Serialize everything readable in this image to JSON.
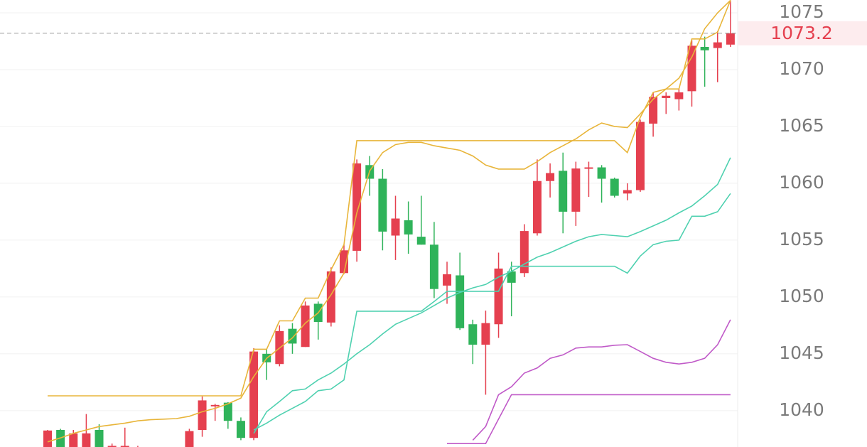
{
  "chart_data": {
    "type": "candlestick",
    "ylim": [
      1036.8,
      1076.125
    ],
    "yticks": [
      1040,
      1045,
      1050,
      1055,
      1060,
      1065,
      1070,
      1075
    ],
    "grid": true,
    "up_color": "#e5404f",
    "down_color": "#2fb35a",
    "last_price": 1073.2,
    "open": [
      1036.2,
      1038.3,
      1036.5,
      1036.5,
      1038.3,
      1036.4,
      1036.4,
      1036.5,
      1036.7,
      1036.2,
      1036.6,
      1036.6,
      1038.3,
      1040.4,
      1040.7,
      1039.1,
      1037.6,
      1045,
      1044.1,
      1047.2,
      1045.6,
      1049.4,
      1047.75,
      1052.1,
      1054.06,
      1061.6,
      1060.4,
      1055.4,
      1056.75,
      1055.3,
      1054.6,
      1051,
      1051.9,
      1047.6,
      1045.8,
      1047.6,
      1052.25,
      1052.1,
      1055.6,
      1060.2,
      1061.1,
      1057.5,
      1061.3,
      1061.4,
      1060.4,
      1059.1,
      1059.4,
      1065.25,
      1067.5,
      1067.4,
      1068.1,
      1072,
      1071.9,
      1072.2
    ],
    "close": [
      1038.25,
      1036.5,
      1038,
      1038,
      1036.4,
      1036.9,
      1036.9,
      1036.7,
      1036.6,
      1036.6,
      1036.3,
      1038.2,
      1040.9,
      1040.5,
      1039.1,
      1037.6,
      1045.2,
      1044.25,
      1047,
      1045.9,
      1049.25,
      1047.8,
      1052.25,
      1054.1,
      1061.75,
      1060.4,
      1055.75,
      1056.9,
      1055.5,
      1054.6,
      1050.7,
      1052,
      1047.25,
      1045.8,
      1047.7,
      1052.5,
      1051.25,
      1055.8,
      1060.2,
      1060.9,
      1057.5,
      1061.3,
      1061.4,
      1060.4,
      1058.9,
      1059.4,
      1065.4,
      1067.6,
      1067.7,
      1068,
      1072.1,
      1071.7,
      1072.4,
      1073.2
    ],
    "high": [
      1038.3,
      1038.4,
      1038.3,
      1039.7,
      1038.8,
      1037.1,
      1038.5,
      1036.9,
      1036.8,
      1036.7,
      1036.7,
      1038.4,
      1041.25,
      1040.6,
      1040.75,
      1039.4,
      1045.5,
      1045.4,
      1047.5,
      1047.7,
      1049.6,
      1049.6,
      1052.6,
      1054.6,
      1062.1,
      1062.4,
      1061.25,
      1058.9,
      1058.4,
      1058.9,
      1056.6,
      1053.1,
      1053.9,
      1048,
      1048.8,
      1053.9,
      1053.1,
      1056.4,
      1062.1,
      1061.75,
      1062.7,
      1061.9,
      1061.9,
      1061.6,
      1060.5,
      1060,
      1065.6,
      1068,
      1068,
      1068.3,
      1072.6,
      1072.9,
      1073.4,
      1076.1
    ],
    "low": [
      1036,
      1036.3,
      1036.3,
      1036.2,
      1036.2,
      1036.2,
      1036.2,
      1036.4,
      1036.4,
      1036,
      1036.1,
      1036,
      1037.7,
      1039.1,
      1038.4,
      1037.4,
      1037.4,
      1042.7,
      1043.9,
      1045,
      1045.6,
      1046.25,
      1047.4,
      1052,
      1053.1,
      1058.9,
      1054.1,
      1053.25,
      1053.8,
      1054.6,
      1049.9,
      1049.4,
      1047.1,
      1044.1,
      1041.4,
      1046.4,
      1048.3,
      1051.75,
      1055.4,
      1058.75,
      1055.6,
      1056.25,
      1058.8,
      1058.3,
      1058.75,
      1058.5,
      1059.25,
      1064.1,
      1066.1,
      1066.4,
      1066.75,
      1068.5,
      1068.9,
      1072
    ],
    "lines": [
      {
        "color": "#e8b53a",
        "values": [
          1041.3,
          1041.3,
          1041.3,
          1041.3,
          1041.3,
          1041.3,
          1041.3,
          1041.3,
          1041.3,
          1041.3,
          1041.3,
          1041.3,
          1041.3,
          1041.3,
          1041.3,
          1041.3,
          1045.4,
          1045.4,
          1047.9,
          1047.9,
          1049.9,
          1049.9,
          1052.4,
          1054.6,
          1063.75,
          1063.75,
          1063.75,
          1063.75,
          1063.75,
          1063.75,
          1063.75,
          1063.75,
          1063.75,
          1063.75,
          1063.75,
          1063.75,
          1063.75,
          1063.75,
          1063.75,
          1063.75,
          1063.75,
          1063.75,
          1063.75,
          1063.75,
          1063.75,
          1062.7,
          1065.8,
          1068,
          1068.3,
          1068.3,
          1072.7,
          1072.7,
          1073.3,
          1076.1
        ]
      },
      {
        "color": "#e8b53a",
        "values": [
          1037.25,
          1037.6,
          1038,
          1038.3,
          1038.6,
          1038.75,
          1038.9,
          1039.1,
          1039.2,
          1039.25,
          1039.3,
          1039.5,
          1039.9,
          1040.2,
          1040.6,
          1041.1,
          1043,
          1044.6,
          1045.5,
          1046.4,
          1047.7,
          1048.6,
          1050.2,
          1052.1,
          1057.4,
          1061.1,
          1062.7,
          1063.4,
          1063.6,
          1063.6,
          1063.3,
          1063.1,
          1062.9,
          1062.4,
          1061.6,
          1061.25,
          1061.25,
          1061.25,
          1061.9,
          1062.7,
          1063.3,
          1063.9,
          1064.7,
          1065.3,
          1065,
          1064.9,
          1066.1,
          1067.4,
          1068.3,
          1069.25,
          1071.1,
          1073.6,
          1075,
          1076.1
        ]
      },
      {
        "color": "#4fd1b0",
        "values": [
          null,
          null,
          null,
          null,
          null,
          null,
          null,
          null,
          null,
          null,
          null,
          null,
          null,
          null,
          null,
          null,
          1038,
          1039.9,
          1040.8,
          1041.75,
          1041.9,
          1042.7,
          1043.3,
          1044.1,
          1045,
          1045.8,
          1046.75,
          1047.6,
          1048.1,
          1048.6,
          1049.25,
          1049.9,
          1050.4,
          1050.8,
          1051.1,
          1051.75,
          1052.25,
          1052.9,
          1053.5,
          1053.9,
          1054.4,
          1054.9,
          1055.3,
          1055.5,
          1055.4,
          1055.3,
          1055.75,
          1056.25,
          1056.75,
          1057.4,
          1058,
          1058.9,
          1059.9,
          1062.25
        ]
      },
      {
        "color": "#4fd1b0",
        "values": [
          null,
          null,
          null,
          null,
          null,
          null,
          null,
          null,
          null,
          null,
          null,
          null,
          null,
          null,
          null,
          null,
          1038.3,
          1038.9,
          1039.6,
          1040.2,
          1040.8,
          1041.75,
          1041.9,
          1042.7,
          1048.75,
          1048.75,
          1048.75,
          1048.75,
          1048.75,
          1048.75,
          1049.6,
          1050.5,
          1050.5,
          1050.5,
          1050.5,
          1050.5,
          1052.7,
          1052.7,
          1052.7,
          1052.7,
          1052.7,
          1052.7,
          1052.7,
          1052.7,
          1052.7,
          1052.1,
          1053.6,
          1054.6,
          1054.9,
          1055,
          1057.1,
          1057.1,
          1057.5,
          1059.1
        ]
      },
      {
        "color": "#c05ac8",
        "values": [
          null,
          null,
          null,
          null,
          null,
          null,
          null,
          null,
          null,
          null,
          null,
          null,
          null,
          null,
          null,
          null,
          null,
          null,
          null,
          null,
          null,
          null,
          null,
          null,
          null,
          null,
          null,
          null,
          null,
          null,
          null,
          null,
          null,
          1037.4,
          1038.6,
          1041.4,
          1042.1,
          1043.3,
          1043.75,
          1044.6,
          1044.9,
          1045.5,
          1045.6,
          1045.6,
          1045.75,
          1045.8,
          1045.2,
          1044.6,
          1044.25,
          1044.1,
          1044.25,
          1044.6,
          1045.8,
          1048
        ]
      },
      {
        "color": "#c05ac8",
        "values": [
          null,
          null,
          null,
          null,
          null,
          null,
          null,
          null,
          null,
          null,
          null,
          null,
          null,
          null,
          null,
          null,
          null,
          null,
          null,
          null,
          null,
          null,
          null,
          null,
          null,
          null,
          null,
          null,
          null,
          null,
          null,
          1037.1,
          1037.1,
          1037.1,
          1037.1,
          1039.25,
          1041.4,
          1041.4,
          1041.4,
          1041.4,
          1041.4,
          1041.4,
          1041.4,
          1041.4,
          1041.4,
          1041.4,
          1041.4,
          1041.4,
          1041.4,
          1041.4,
          1041.4,
          1041.4,
          1041.4,
          1041.4
        ]
      }
    ]
  }
}
